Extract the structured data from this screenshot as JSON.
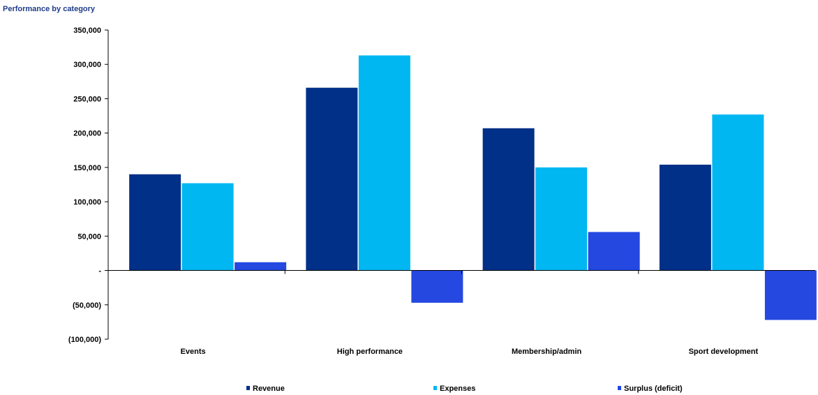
{
  "chart_data": {
    "type": "bar",
    "title": "Performance by category",
    "categories": [
      "Events",
      "High performance",
      "Membership/admin",
      "Sport development"
    ],
    "series": [
      {
        "name": "Revenue",
        "color": "#003087",
        "values": [
          140000,
          266000,
          207000,
          154000
        ]
      },
      {
        "name": "Expenses",
        "color": "#00b7f1",
        "values": [
          127000,
          313000,
          150000,
          227000
        ]
      },
      {
        "name": "Surplus (deficit)",
        "color": "#2448e0",
        "values": [
          12000,
          -47000,
          56000,
          -72000
        ]
      }
    ],
    "y_ticks": [
      {
        "value": 350000,
        "label": "350,000"
      },
      {
        "value": 300000,
        "label": "300,000"
      },
      {
        "value": 250000,
        "label": "250,000"
      },
      {
        "value": 200000,
        "label": "200,000"
      },
      {
        "value": 150000,
        "label": "150,000"
      },
      {
        "value": 100000,
        "label": "100,000"
      },
      {
        "value": 50000,
        "label": "50,000"
      },
      {
        "value": 0,
        "label": "-"
      },
      {
        "value": -50000,
        "label": "(50,000)"
      },
      {
        "value": -100000,
        "label": "(100,000)"
      }
    ],
    "ylim": [
      -100000,
      350000
    ],
    "xlabel": "",
    "ylabel": "",
    "grid": false,
    "legend_position": "bottom"
  }
}
